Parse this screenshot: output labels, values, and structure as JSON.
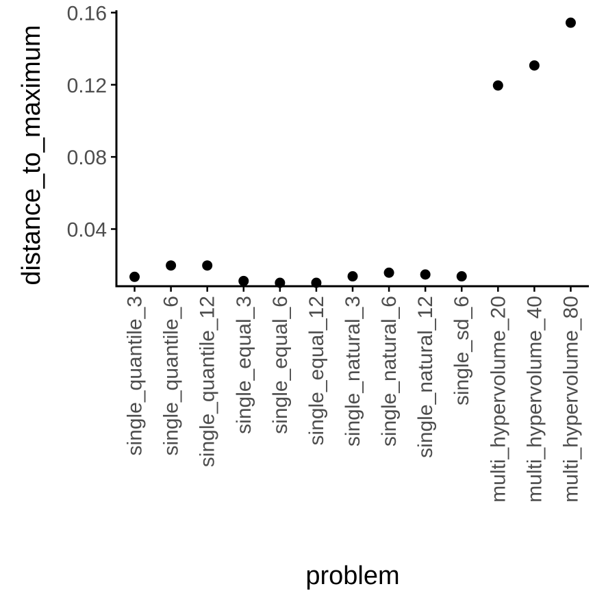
{
  "chart_data": {
    "type": "scatter",
    "title": "",
    "xlabel": "problem",
    "ylabel": "distance_to_maximum",
    "categories": [
      "single_quantile_3",
      "single_quantile_6",
      "single_quantile_12",
      "single_equal_3",
      "single_equal_6",
      "single_equal_12",
      "single_natural_3",
      "single_natural_6",
      "single_natural_12",
      "single_sd_6",
      "multi_hypervolume_20",
      "multi_hypervolume_40",
      "multi_hypervolume_80"
    ],
    "values": [
      0.0135,
      0.0198,
      0.0198,
      0.0112,
      0.0102,
      0.0102,
      0.0138,
      0.0158,
      0.0148,
      0.0138,
      0.1196,
      0.1307,
      0.1544
    ],
    "ylim": [
      0.0083,
      0.1613
    ],
    "yticks": [
      0.04,
      0.08,
      0.12,
      0.16
    ],
    "ytick_labels": [
      "0.04",
      "0.08",
      "0.12",
      "0.16"
    ],
    "grid": false,
    "legend": "none",
    "point_color": "#000000"
  }
}
